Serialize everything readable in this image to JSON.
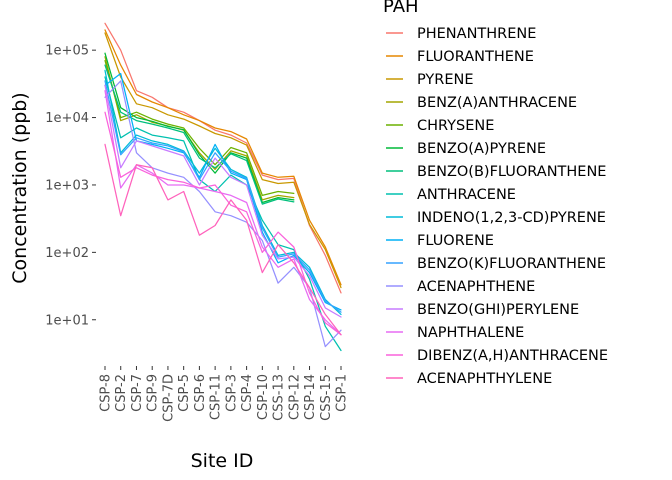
{
  "chart_data": {
    "type": "line",
    "title": "",
    "xlabel": "Site ID",
    "ylabel": "Concentration (ppb)",
    "y_scale": "log10",
    "ylim": [
      3,
      300000
    ],
    "y_ticks": [
      {
        "value": 10,
        "label": "1e+01"
      },
      {
        "value": 100,
        "label": "1e+02"
      },
      {
        "value": 1000,
        "label": "1e+03"
      },
      {
        "value": 10000,
        "label": "1e+04"
      },
      {
        "value": 100000,
        "label": "1e+05"
      }
    ],
    "grid": false,
    "legend_position": "right",
    "legend_title": "PAH",
    "categories": [
      "CSP-8",
      "CSP-2",
      "CSP-7",
      "CSP-9",
      "CSP-7D",
      "CSP-5",
      "CSP-6",
      "CSP-11",
      "CSP-3",
      "CSP-4",
      "CSP-10",
      "CSS-13",
      "CSP-12",
      "CSP-14",
      "CSS-15",
      "CSP-1"
    ],
    "series": [
      {
        "name": "PHENANTHRENE",
        "color": "#F8766D",
        "values": [
          250000,
          100000,
          25000,
          20000,
          14000,
          12000,
          9000,
          6500,
          5500,
          4200,
          1400,
          1200,
          1250,
          250,
          90,
          25
        ]
      },
      {
        "name": "FLUORANTHENE",
        "color": "#E58700",
        "values": [
          200000,
          60000,
          22000,
          17000,
          14000,
          11000,
          9000,
          7000,
          6200,
          4800,
          1500,
          1300,
          1350,
          300,
          120,
          33
        ]
      },
      {
        "name": "PYRENE",
        "color": "#C99800",
        "values": [
          180000,
          40000,
          16000,
          14000,
          11000,
          9500,
          7500,
          5800,
          5000,
          3900,
          1200,
          1050,
          1100,
          260,
          110,
          30
        ]
      },
      {
        "name": "BENZ(A)ANTHRACENE",
        "color": "#A3A500",
        "values": [
          80000,
          9000,
          11000,
          8500,
          7500,
          6500,
          3000,
          1700,
          3200,
          2700,
          600,
          700,
          650,
          null,
          null,
          null
        ]
      },
      {
        "name": "CHRYSENE",
        "color": "#6BB100",
        "values": [
          70000,
          10000,
          12000,
          9500,
          8000,
          7000,
          3500,
          2000,
          3600,
          3000,
          700,
          800,
          750,
          null,
          null,
          null
        ]
      },
      {
        "name": "BENZO(A)PYRENE",
        "color": "#00BA38",
        "values": [
          90000,
          14000,
          10000,
          8800,
          7400,
          6600,
          2800,
          1500,
          3000,
          2500,
          550,
          650,
          600,
          null,
          null,
          null
        ]
      },
      {
        "name": "BENZO(B)FLUORANTHENE",
        "color": "#00BF7D",
        "values": [
          60000,
          12000,
          9000,
          8000,
          7000,
          6000,
          2500,
          1800,
          2900,
          2300,
          520,
          620,
          560,
          null,
          null,
          null
        ]
      },
      {
        "name": "ANTHRACENE",
        "color": "#00C0AF",
        "values": [
          40000,
          5000,
          7000,
          5500,
          5000,
          4500,
          1200,
          800,
          1400,
          1000,
          300,
          130,
          110,
          40,
          8,
          3.5
        ]
      },
      {
        "name": "INDENO(1,2,3-CD)PYRENE",
        "color": "#00BCD8",
        "values": [
          50000,
          3000,
          5500,
          4500,
          4000,
          3200,
          1500,
          3500,
          1700,
          1300,
          250,
          90,
          100,
          60,
          20,
          12
        ]
      },
      {
        "name": "FLUORENE",
        "color": "#00B0F6",
        "values": [
          30000,
          45000,
          4500,
          4000,
          3500,
          3000,
          1300,
          4000,
          1500,
          1200,
          200,
          70,
          90,
          50,
          18,
          14
        ]
      },
      {
        "name": "BENZO(K)FLUORANTHENE",
        "color": "#35A2FF",
        "values": [
          35000,
          2800,
          5000,
          4200,
          3800,
          3100,
          1200,
          3000,
          1600,
          1250,
          230,
          85,
          95,
          55,
          19,
          13
        ]
      },
      {
        "name": "ACENAPHTHENE",
        "color": "#9590FF",
        "values": [
          20000,
          35000,
          3000,
          1800,
          1500,
          1300,
          800,
          400,
          350,
          280,
          150,
          35,
          60,
          30,
          4,
          7
        ]
      },
      {
        "name": "BENZO(GHI)PERYLENE",
        "color": "#C77CFF",
        "values": [
          30000,
          1800,
          4500,
          3800,
          3200,
          2700,
          1000,
          2500,
          1300,
          1000,
          180,
          80,
          85,
          45,
          15,
          11
        ]
      },
      {
        "name": "NAPHTHALENE",
        "color": "#E76BF3",
        "values": [
          25000,
          900,
          2000,
          1500,
          1000,
          1000,
          900,
          800,
          700,
          550,
          120,
          60,
          80,
          20,
          10,
          6
        ]
      },
      {
        "name": "DIBENZ(A,H)ANTHRACENE",
        "color": "#FA62DB",
        "values": [
          12000,
          1300,
          1800,
          1400,
          1200,
          1100,
          900,
          1000,
          500,
          400,
          100,
          200,
          120,
          25,
          9,
          6
        ]
      },
      {
        "name": "ACENAPHTHYLENE",
        "color": "#FF62BC",
        "values": [
          4000,
          350,
          2000,
          1800,
          600,
          800,
          180,
          250,
          600,
          300,
          50,
          130,
          70,
          30,
          12,
          6
        ]
      }
    ]
  }
}
